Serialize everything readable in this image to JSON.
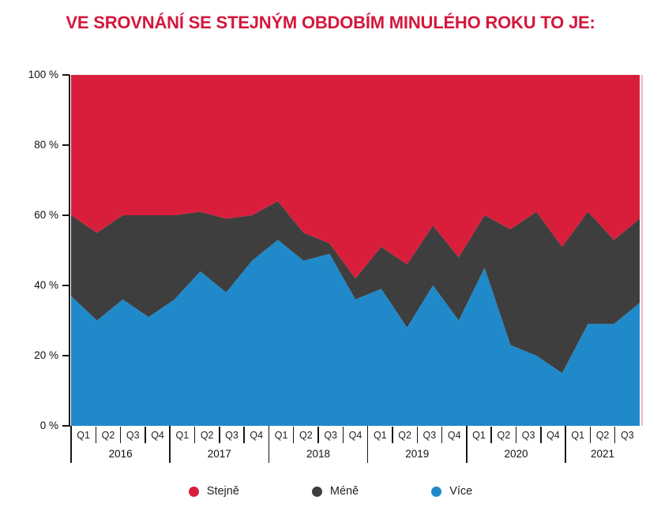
{
  "title": "VE SROVNÁNÍ SE STEJNÝM OBDOBÍM MINULÉHO ROKU TO JE:",
  "colors": {
    "title": "#d4173c",
    "stejne": "#d91e3c",
    "mene": "#3e3e3e",
    "vice": "#2089c9",
    "axis": "#161616"
  },
  "y_axis": {
    "tick_labels": [
      "100 %",
      "80 %",
      "60 %",
      "40 %",
      "20 %",
      "0 %"
    ]
  },
  "legend": [
    {
      "label": "Stejně",
      "color_key": "stejne"
    },
    {
      "label": "Méně",
      "color_key": "mene"
    },
    {
      "label": "Více",
      "color_key": "vice"
    }
  ],
  "chart_data": {
    "type": "area",
    "stacked": true,
    "percent": true,
    "ylim": [
      0,
      100
    ],
    "grid": false,
    "legend_position": "bottom",
    "title": "VE SROVNÁNÍ SE STEJNÝM OBDOBÍM MINULÉHO ROKU TO JE:",
    "years": [
      {
        "label": "2016",
        "quarters": [
          "Q1",
          "Q2",
          "Q3",
          "Q4"
        ]
      },
      {
        "label": "2017",
        "quarters": [
          "Q1",
          "Q2",
          "Q3",
          "Q4"
        ]
      },
      {
        "label": "2018",
        "quarters": [
          "Q1",
          "Q2",
          "Q3",
          "Q4"
        ]
      },
      {
        "label": "2019",
        "quarters": [
          "Q1",
          "Q2",
          "Q3",
          "Q4"
        ]
      },
      {
        "label": "2020",
        "quarters": [
          "Q1",
          "Q2",
          "Q3",
          "Q4"
        ]
      },
      {
        "label": "2021",
        "quarters": [
          "Q1",
          "Q2",
          "Q3"
        ]
      }
    ],
    "x": [
      "2016 Q1",
      "2016 Q2",
      "2016 Q3",
      "2016 Q4",
      "2017 Q1",
      "2017 Q2",
      "2017 Q3",
      "2017 Q4",
      "2018 Q1",
      "2018 Q2",
      "2018 Q3",
      "2018 Q4",
      "2019 Q1",
      "2019 Q2",
      "2019 Q3",
      "2019 Q4",
      "2020 Q1",
      "2020 Q2",
      "2020 Q3",
      "2020 Q4",
      "2021 Q1",
      "2021 Q2",
      "2021 Q3"
    ],
    "series": [
      {
        "name": "Stejně",
        "color_key": "stejne",
        "stack_level": "top",
        "values": [
          40,
          45,
          40,
          40,
          40,
          39,
          41,
          40,
          36,
          45,
          48,
          58,
          49,
          54,
          43,
          52,
          40,
          44,
          39,
          49,
          39,
          47,
          41
        ]
      },
      {
        "name": "Méně",
        "color_key": "mene",
        "stack_level": "middle",
        "values": [
          23,
          25,
          24,
          29,
          24,
          17,
          21,
          13,
          11,
          8,
          3,
          6,
          12,
          18,
          17,
          18,
          15,
          33,
          41,
          36,
          32,
          24,
          24
        ]
      },
      {
        "name": "Více",
        "color_key": "vice",
        "stack_level": "bottom",
        "values": [
          37,
          30,
          36,
          31,
          36,
          44,
          38,
          47,
          53,
          47,
          49,
          36,
          39,
          28,
          40,
          30,
          45,
          23,
          20,
          15,
          29,
          29,
          35
        ]
      }
    ]
  }
}
